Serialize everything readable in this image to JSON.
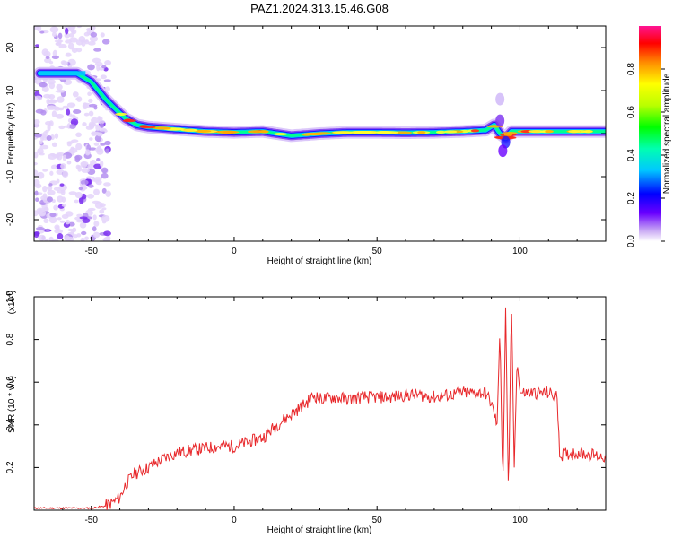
{
  "title": "PAZ1.2024.313.15.46.G08",
  "chart_data": [
    {
      "type": "heatmap",
      "xlabel": "Height of straight line (km)",
      "ylabel": "Frequency (Hz)",
      "xlim": [
        -70,
        130
      ],
      "ylim": [
        -25,
        25
      ],
      "x_ticks": [
        -50,
        0,
        50,
        100
      ],
      "x_tick_labels": [
        "-50",
        "0",
        "50",
        "100"
      ],
      "y_ticks": [
        -20,
        -10,
        0,
        10,
        20
      ],
      "y_tick_labels": [
        "-20",
        "-10",
        "0",
        "10",
        "20"
      ],
      "colorbar": {
        "label": "Normalized spectral amplitude",
        "range": [
          0,
          1
        ],
        "ticks": [
          0,
          0.2,
          0.4,
          0.6,
          0.8
        ],
        "tick_labels": [
          "0.0",
          "0.2",
          "0.4",
          "0.6",
          "0.8"
        ]
      },
      "ridge": {
        "x": [
          -68,
          -60,
          -55,
          -50,
          -45,
          -42,
          -38,
          -34,
          -30,
          -20,
          -10,
          0,
          10,
          20,
          30,
          40,
          50,
          60,
          70,
          80,
          88,
          91,
          93,
          95,
          97,
          100,
          110,
          120,
          130
        ],
        "freq": [
          14,
          14,
          14,
          12,
          8,
          6,
          3.5,
          2,
          1.5,
          1,
          0.5,
          0.3,
          0.5,
          -0.5,
          0,
          0.3,
          0.3,
          0.2,
          0.3,
          0.5,
          0.8,
          2,
          0,
          -1,
          0.5,
          0.5,
          0.5,
          0.5,
          0.5
        ]
      },
      "noise_region_x": [
        -70,
        -44
      ]
    },
    {
      "type": "line",
      "xlabel": "Height of straight line (km)",
      "ylabel": "SNR (10 * v/v)",
      "y_multiplier": "(x10",
      "y_multiplier_exp": "4",
      "xlim": [
        -70,
        130
      ],
      "ylim": [
        0,
        1.0
      ],
      "x_ticks": [
        -50,
        0,
        50,
        100
      ],
      "x_tick_labels": [
        "-50",
        "0",
        "50",
        "100"
      ],
      "y_ticks": [
        0.2,
        0.4,
        0.6,
        0.8,
        1.0
      ],
      "y_tick_labels": [
        "0.2",
        "0.4",
        "0.6",
        "0.8",
        "1.0"
      ],
      "series": [
        {
          "color": "#e8282b",
          "x": [
            -70,
            -60,
            -50,
            -45,
            -42,
            -40,
            -38,
            -35,
            -30,
            -25,
            -20,
            -15,
            -10,
            -5,
            0,
            5,
            10,
            15,
            20,
            25,
            28,
            30,
            35,
            40,
            45,
            50,
            55,
            60,
            65,
            70,
            75,
            80,
            85,
            88,
            90,
            92,
            93,
            94,
            95,
            96,
            97,
            98,
            99,
            100,
            105,
            110,
            113,
            114,
            115,
            120,
            125,
            130
          ],
          "y": [
            0.01,
            0.01,
            0.01,
            0.02,
            0.04,
            0.06,
            0.12,
            0.17,
            0.2,
            0.24,
            0.27,
            0.28,
            0.29,
            0.3,
            0.3,
            0.32,
            0.34,
            0.4,
            0.45,
            0.5,
            0.54,
            0.52,
            0.53,
            0.52,
            0.53,
            0.53,
            0.53,
            0.54,
            0.54,
            0.53,
            0.54,
            0.55,
            0.55,
            0.55,
            0.5,
            0.4,
            0.85,
            0.1,
            0.95,
            0.05,
            1.0,
            0.2,
            0.7,
            0.55,
            0.55,
            0.55,
            0.53,
            0.25,
            0.26,
            0.27,
            0.26,
            0.25
          ]
        }
      ]
    }
  ]
}
